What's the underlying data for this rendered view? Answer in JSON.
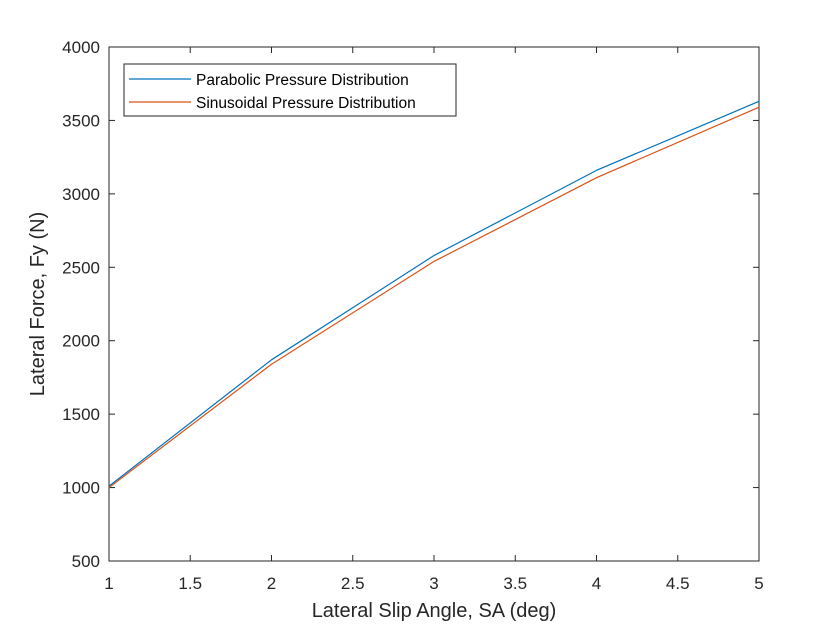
{
  "chart_data": {
    "type": "line",
    "title": "",
    "xlabel": "Lateral Slip Angle, SA (deg)",
    "ylabel": "Lateral Force, Fy (N)",
    "xlim": [
      1,
      5
    ],
    "ylim": [
      500,
      4000
    ],
    "xticks": [
      1,
      1.5,
      2,
      2.5,
      3,
      3.5,
      4,
      4.5,
      5
    ],
    "xtick_labels": [
      "1",
      "1.5",
      "2",
      "2.5",
      "3",
      "3.5",
      "4",
      "4.5",
      "5"
    ],
    "yticks": [
      500,
      1000,
      1500,
      2000,
      2500,
      3000,
      3500,
      4000
    ],
    "ytick_labels": [
      "500",
      "1000",
      "1500",
      "2000",
      "2500",
      "3000",
      "3500",
      "4000"
    ],
    "grid": false,
    "legend_position": "top-left",
    "x": [
      1,
      2,
      3,
      4,
      5
    ],
    "series": [
      {
        "name": "Parabolic Pressure Distribution",
        "color": "#0072BD",
        "values": [
          1010,
          1870,
          2580,
          3160,
          3630
        ]
      },
      {
        "name": "Sinusoidal Pressure Distribution",
        "color": "#D95319",
        "values": [
          1000,
          1840,
          2540,
          3110,
          3590
        ]
      }
    ]
  }
}
